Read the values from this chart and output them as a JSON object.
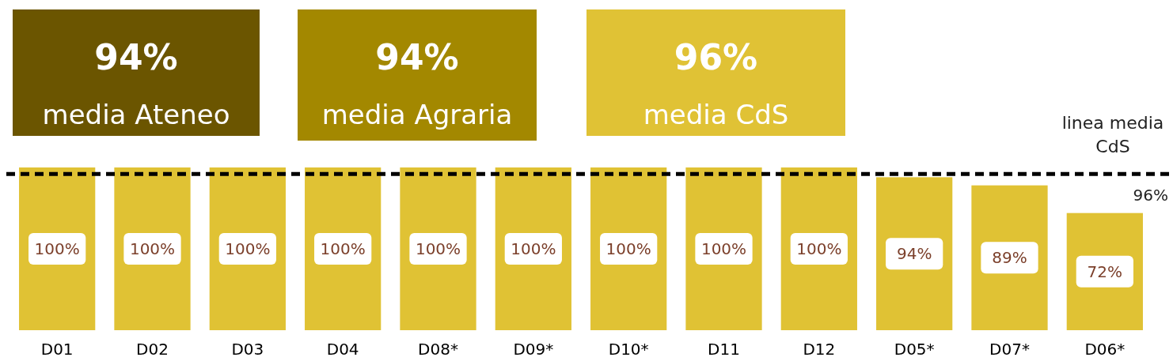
{
  "chart_data": {
    "type": "bar",
    "categories": [
      "D01",
      "D02",
      "D03",
      "D04",
      "D08*",
      "D09*",
      "D10*",
      "D11",
      "D12",
      "D05*",
      "D07*",
      "D06*"
    ],
    "values": [
      100,
      100,
      100,
      100,
      100,
      100,
      100,
      100,
      100,
      94,
      89,
      72
    ],
    "value_labels": [
      "100%",
      "100%",
      "100%",
      "100%",
      "100%",
      "100%",
      "100%",
      "100%",
      "100%",
      "94%",
      "89%",
      "72%"
    ],
    "color": "#e0c234",
    "ref_lines": [
      {
        "axis": "y",
        "value": 96,
        "label": "linea media CdS",
        "color": "#000000",
        "line_style": "dashed"
      }
    ],
    "annotations": [
      "94%",
      "media Ateneo",
      "94%",
      "media Agraria",
      "96%",
      "media CdS",
      {
        "text": "96%",
        "y": 96
      }
    ]
  }
}
